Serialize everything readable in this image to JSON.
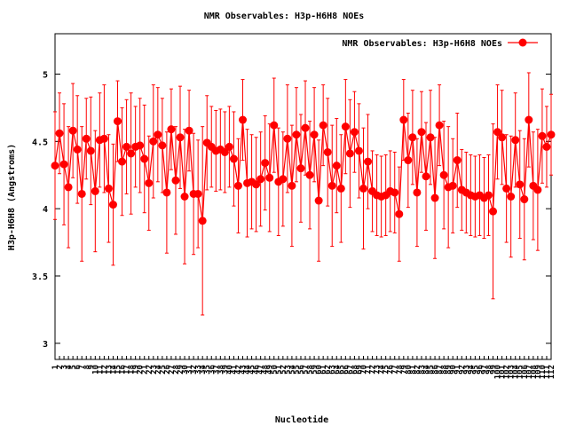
{
  "chart_data": {
    "type": "errorbar-line",
    "title": "NMR Observables: H3p-H6H8 NOEs",
    "xlabel": "Nucleotide",
    "ylabel": "H3p-H6H8 (Angstroms)",
    "xlim": [
      1,
      112
    ],
    "ylim": [
      2.88,
      5.3
    ],
    "yticks": [
      3,
      3.5,
      4,
      4.5,
      5
    ],
    "xticks": [
      1,
      2,
      3,
      4,
      5,
      6,
      7,
      8,
      9,
      10,
      11,
      12,
      13,
      14,
      15,
      16,
      17,
      18,
      19,
      20,
      21,
      22,
      23,
      24,
      25,
      26,
      27,
      28,
      29,
      30,
      31,
      32,
      33,
      34,
      35,
      36,
      37,
      38,
      39,
      40,
      41,
      42,
      43,
      44,
      45,
      46,
      47,
      48,
      49,
      50,
      51,
      52,
      53,
      54,
      55,
      56,
      57,
      58,
      59,
      60,
      61,
      62,
      63,
      64,
      65,
      66,
      67,
      68,
      69,
      70,
      71,
      72,
      73,
      74,
      75,
      76,
      77,
      78,
      79,
      80,
      81,
      82,
      83,
      84,
      85,
      86,
      87,
      88,
      89,
      90,
      91,
      92,
      93,
      94,
      95,
      96,
      97,
      98,
      99,
      100,
      101,
      102,
      103,
      104,
      105,
      106,
      107,
      108,
      109,
      110,
      111,
      112
    ],
    "x": [
      1,
      2,
      3,
      4,
      5,
      6,
      7,
      8,
      9,
      10,
      11,
      12,
      13,
      14,
      15,
      16,
      17,
      18,
      19,
      20,
      21,
      22,
      23,
      24,
      25,
      26,
      27,
      28,
      29,
      30,
      31,
      32,
      33,
      34,
      35,
      36,
      37,
      38,
      39,
      40,
      41,
      42,
      43,
      44,
      45,
      46,
      47,
      48,
      49,
      50,
      51,
      52,
      53,
      54,
      55,
      56,
      57,
      58,
      59,
      60,
      61,
      62,
      63,
      64,
      65,
      66,
      67,
      68,
      69,
      70,
      71,
      72,
      73,
      74,
      75,
      76,
      77,
      78,
      79,
      80,
      81,
      82,
      83,
      84,
      85,
      86,
      87,
      88,
      89,
      90,
      91,
      92,
      93,
      94,
      95,
      96,
      97,
      98,
      99,
      100,
      101,
      102,
      103,
      104,
      105,
      106,
      107,
      108,
      109,
      110,
      111,
      112
    ],
    "legend": "upper right",
    "series": [
      {
        "name": "NMR Observables: H3p-H6H8 NOEs",
        "color": "#ff0000",
        "values": [
          4.32,
          4.56,
          4.33,
          4.16,
          4.58,
          4.44,
          4.11,
          4.52,
          4.43,
          4.13,
          4.51,
          4.52,
          4.15,
          4.03,
          4.65,
          4.35,
          4.46,
          4.41,
          4.46,
          4.47,
          4.37,
          4.19,
          4.5,
          4.55,
          4.47,
          4.12,
          4.59,
          4.21,
          4.53,
          4.09,
          4.58,
          4.11,
          4.11,
          3.91,
          4.49,
          4.46,
          4.43,
          4.44,
          4.42,
          4.46,
          4.37,
          4.17,
          4.66,
          4.19,
          4.2,
          4.18,
          4.22,
          4.34,
          4.23,
          4.62,
          4.2,
          4.22,
          4.52,
          4.17,
          4.55,
          4.3,
          4.6,
          4.25,
          4.55,
          4.06,
          4.62,
          4.42,
          4.17,
          4.32,
          4.15,
          4.61,
          4.41,
          4.57,
          4.43,
          4.15,
          4.35,
          4.13,
          4.1,
          4.09,
          4.1,
          4.13,
          4.12,
          3.96,
          4.66,
          4.36,
          4.53,
          4.12,
          4.57,
          4.24,
          4.53,
          4.08,
          4.62,
          4.25,
          4.16,
          4.17,
          4.36,
          4.14,
          4.12,
          4.1,
          4.09,
          4.1,
          4.08,
          4.1,
          3.98,
          4.57,
          4.53,
          4.15,
          4.09,
          4.51,
          4.18,
          4.07,
          4.66,
          4.17,
          4.14,
          4.54,
          4.46,
          4.55
        ],
        "errors": [
          0.4,
          0.3,
          0.45,
          0.45,
          0.35,
          0.4,
          0.5,
          0.3,
          0.4,
          0.45,
          0.35,
          0.4,
          0.4,
          0.45,
          0.3,
          0.4,
          0.35,
          0.45,
          0.3,
          0.35,
          0.4,
          0.35,
          0.42,
          0.35,
          0.35,
          0.45,
          0.3,
          0.4,
          0.38,
          0.5,
          0.3,
          0.45,
          0.4,
          0.7,
          0.35,
          0.3,
          0.3,
          0.3,
          0.3,
          0.3,
          0.35,
          0.35,
          0.3,
          0.4,
          0.35,
          0.35,
          0.35,
          0.35,
          0.4,
          0.35,
          0.4,
          0.35,
          0.4,
          0.45,
          0.35,
          0.4,
          0.35,
          0.4,
          0.35,
          0.45,
          0.3,
          0.4,
          0.45,
          0.35,
          0.4,
          0.35,
          0.4,
          0.3,
          0.35,
          0.45,
          0.35,
          0.3,
          0.3,
          0.3,
          0.3,
          0.3,
          0.3,
          0.35,
          0.3,
          0.35,
          0.35,
          0.4,
          0.3,
          0.4,
          0.35,
          0.45,
          0.3,
          0.4,
          0.45,
          0.35,
          0.35,
          0.3,
          0.3,
          0.3,
          0.3,
          0.3,
          0.3,
          0.3,
          0.65,
          0.35,
          0.35,
          0.4,
          0.45,
          0.35,
          0.4,
          0.45,
          0.35,
          0.4,
          0.45,
          0.35,
          0.3,
          0.3
        ]
      }
    ]
  }
}
